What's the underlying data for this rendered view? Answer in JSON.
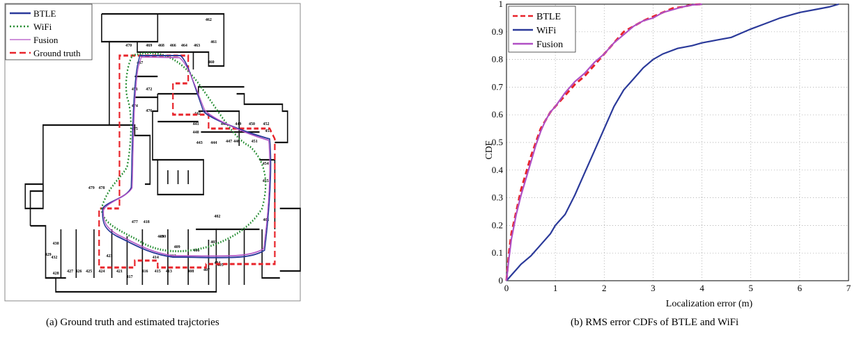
{
  "captions": {
    "a": "(a) Ground truth and estimated trajctories",
    "b": "(b) RMS error CDFs of BTLE and WiFi"
  },
  "floorplan": {
    "legend": [
      {
        "label": "BTLE",
        "color": "#2b3a9a",
        "style": "solid"
      },
      {
        "label": "WiFi",
        "color": "#1f8a2c",
        "style": "dotted"
      },
      {
        "label": "Fusion",
        "color": "#b04fc4",
        "style": "solid-thin"
      },
      {
        "label": "Ground truth",
        "color": "#e8232a",
        "style": "dashed"
      }
    ],
    "room_labels": [
      "462",
      "461",
      "460",
      "463",
      "464",
      "466",
      "468",
      "469",
      "470",
      "467",
      "472",
      "471",
      "476",
      "474",
      "475",
      "441",
      "440",
      "442",
      "443",
      "444",
      "447",
      "446",
      "448",
      "449",
      "450",
      "451",
      "452",
      "453",
      "454",
      "455",
      "479",
      "478",
      "477",
      "418",
      "419",
      "410",
      "409",
      "406",
      "403",
      "402",
      "401",
      "404",
      "405",
      "407",
      "408",
      "413",
      "414",
      "415",
      "416",
      "417",
      "412",
      "421",
      "423",
      "424",
      "425",
      "426",
      "427",
      "428",
      "429",
      "430",
      "432"
    ]
  },
  "chart_data": {
    "type": "line",
    "title": "",
    "xlabel": "Localization error (m)",
    "ylabel": "CDF",
    "xlim": [
      0,
      7
    ],
    "ylim": [
      0,
      1
    ],
    "xticks": [
      0,
      1,
      2,
      3,
      4,
      5,
      6,
      7
    ],
    "yticks": [
      0,
      0.1,
      0.2,
      0.3,
      0.4,
      0.5,
      0.6,
      0.7,
      0.8,
      0.9,
      1
    ],
    "grid": true,
    "legend_position": "top-left",
    "series": [
      {
        "name": "BTLE",
        "color": "#e8232a",
        "dash": "dashed",
        "x": [
          0,
          0.05,
          0.1,
          0.2,
          0.3,
          0.4,
          0.5,
          0.6,
          0.7,
          0.8,
          0.9,
          1.0,
          1.2,
          1.4,
          1.6,
          1.8,
          2.0,
          2.2,
          2.4,
          2.6,
          2.8,
          3.0,
          3.2,
          3.4,
          3.6,
          3.8,
          4.0
        ],
        "y": [
          0,
          0.1,
          0.17,
          0.25,
          0.33,
          0.39,
          0.45,
          0.5,
          0.55,
          0.58,
          0.61,
          0.63,
          0.67,
          0.71,
          0.74,
          0.78,
          0.82,
          0.86,
          0.9,
          0.92,
          0.94,
          0.955,
          0.97,
          0.985,
          0.99,
          0.998,
          1.0
        ]
      },
      {
        "name": "WiFi",
        "color": "#2b3a9a",
        "dash": "solid",
        "x": [
          0,
          0.1,
          0.2,
          0.3,
          0.5,
          0.7,
          0.9,
          1.0,
          1.2,
          1.4,
          1.6,
          1.8,
          2.0,
          2.2,
          2.4,
          2.6,
          2.8,
          3.0,
          3.2,
          3.5,
          3.8,
          4.0,
          4.3,
          4.6,
          5.0,
          5.3,
          5.6,
          6.0,
          6.3,
          6.6,
          6.8
        ],
        "y": [
          0,
          0.02,
          0.04,
          0.06,
          0.09,
          0.13,
          0.17,
          0.2,
          0.24,
          0.31,
          0.39,
          0.47,
          0.55,
          0.63,
          0.69,
          0.73,
          0.77,
          0.8,
          0.82,
          0.84,
          0.85,
          0.86,
          0.87,
          0.88,
          0.91,
          0.93,
          0.95,
          0.97,
          0.98,
          0.99,
          1.0
        ]
      },
      {
        "name": "Fusion",
        "color": "#b04fc4",
        "dash": "solid",
        "x": [
          0,
          0.05,
          0.1,
          0.2,
          0.3,
          0.4,
          0.5,
          0.6,
          0.7,
          0.8,
          0.9,
          1.0,
          1.2,
          1.4,
          1.6,
          1.8,
          2.0,
          2.2,
          2.4,
          2.6,
          2.8,
          3.0,
          3.2,
          3.4,
          3.6,
          3.8,
          4.0
        ],
        "y": [
          0,
          0.08,
          0.15,
          0.24,
          0.31,
          0.37,
          0.43,
          0.49,
          0.54,
          0.58,
          0.61,
          0.63,
          0.68,
          0.72,
          0.75,
          0.79,
          0.82,
          0.86,
          0.89,
          0.92,
          0.94,
          0.95,
          0.97,
          0.98,
          0.99,
          0.997,
          1.0
        ]
      }
    ]
  }
}
